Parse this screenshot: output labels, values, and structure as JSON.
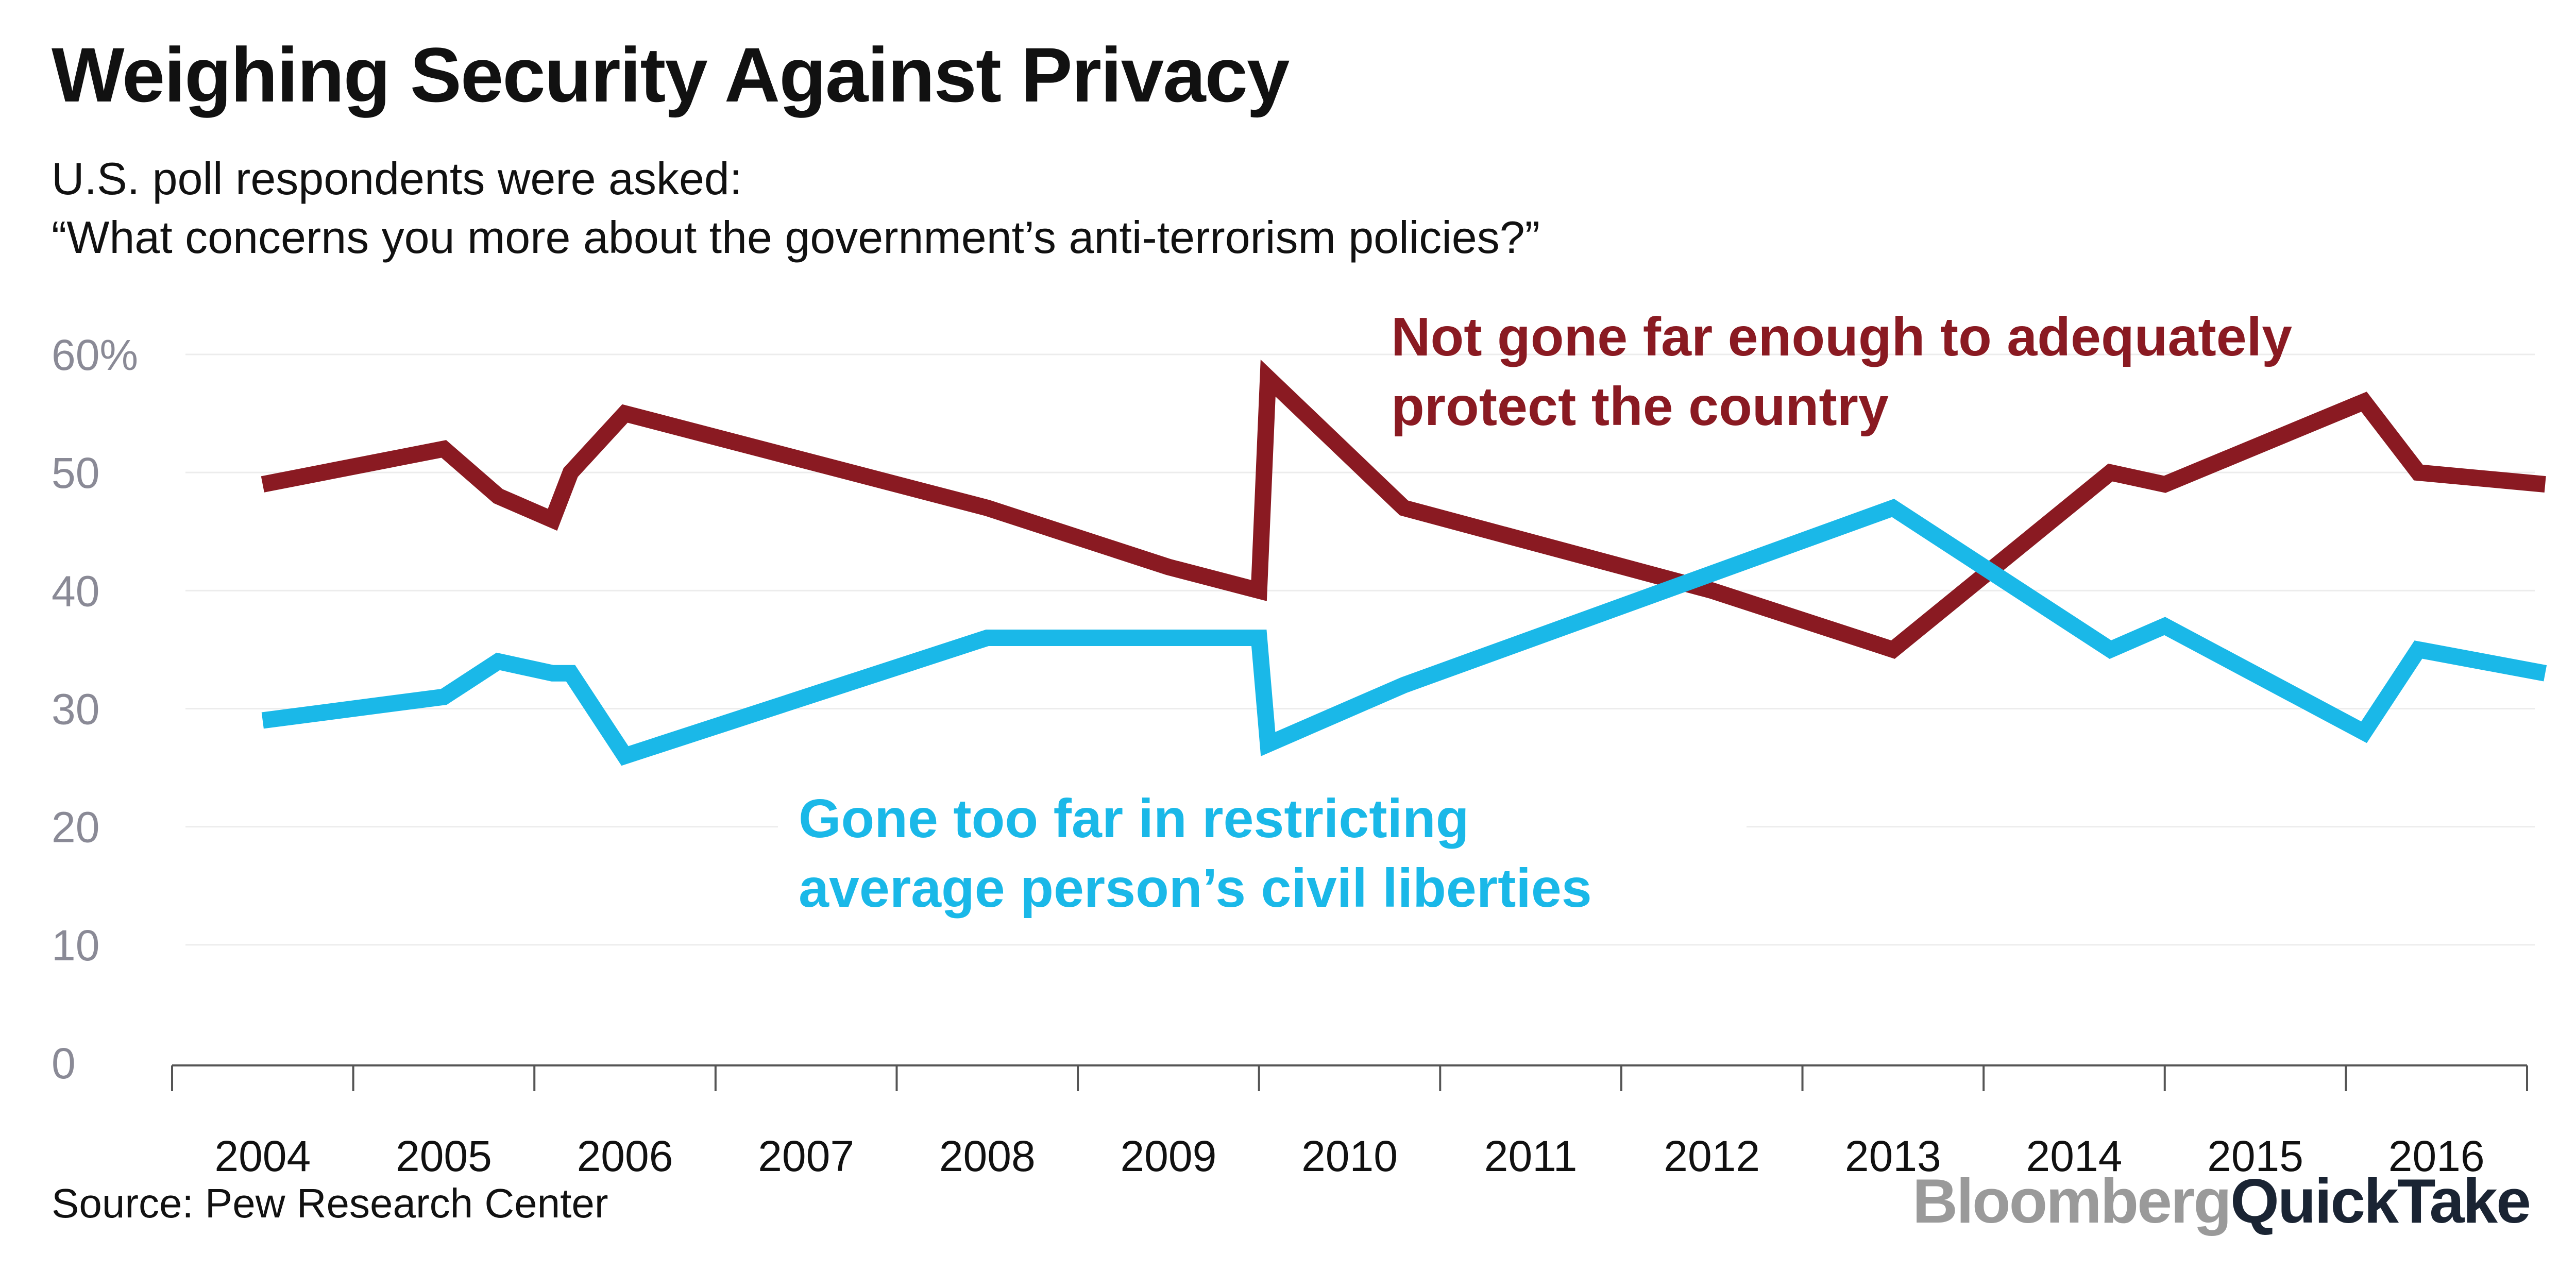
{
  "header": {
    "title": "Weighing Security Against Privacy",
    "subtitle_line1": "U.S. poll respondents were asked:",
    "subtitle_line2": "“What concerns you more about the government’s anti-terrorism policies?”"
  },
  "footer": {
    "source": "Source: Pew Research Center",
    "logo_brand": "Bloomberg",
    "logo_product": "QuickTake"
  },
  "chart_data": {
    "type": "line",
    "title": "Weighing Security Against Privacy",
    "xlabel": "",
    "ylabel": "",
    "ylim": [
      0,
      60
    ],
    "xlim": [
      2003.5,
      2016.5
    ],
    "yticks": [
      0,
      10,
      20,
      30,
      40,
      50,
      60
    ],
    "ytick_labels": [
      "0",
      "10",
      "20",
      "30",
      "40",
      "50",
      "60%"
    ],
    "categories": [
      "2004",
      "2005",
      "2006",
      "2007",
      "2008",
      "2009",
      "2010",
      "2011",
      "2012",
      "2013",
      "2014",
      "2015",
      "2016"
    ],
    "grid": true,
    "series": [
      {
        "name": "Not gone far enough to adequately protect the country",
        "label_lines": [
          "Not gone far enough to adequately",
          "protect the country"
        ],
        "color": "#8a1a22",
        "x": [
          2004.0,
          2005.0,
          2005.3,
          2005.6,
          2005.7,
          2006.0,
          2008.0,
          2009.0,
          2009.5,
          2009.55,
          2010.3,
          2012.0,
          2013.0,
          2014.2,
          2014.5,
          2015.6,
          2015.9,
          2016.6
        ],
        "values": [
          49,
          52,
          48,
          46,
          50,
          55,
          47,
          42,
          40,
          58,
          47,
          40,
          35,
          50,
          49,
          56,
          50,
          49
        ]
      },
      {
        "name": "Gone too far in restricting average person’s civil liberties",
        "label_lines": [
          "Gone too far in restricting",
          "average person’s civil liberties"
        ],
        "color": "#1ab8e8",
        "x": [
          2004.0,
          2005.0,
          2005.3,
          2005.6,
          2005.7,
          2006.0,
          2008.0,
          2009.0,
          2009.5,
          2009.55,
          2010.3,
          2013.0,
          2013.3,
          2014.2,
          2014.5,
          2015.6,
          2015.9,
          2016.6
        ],
        "values": [
          29,
          31,
          34,
          33,
          33,
          26,
          36,
          36,
          36,
          27,
          32,
          47,
          44,
          35,
          37,
          28,
          35,
          33
        ]
      }
    ]
  }
}
